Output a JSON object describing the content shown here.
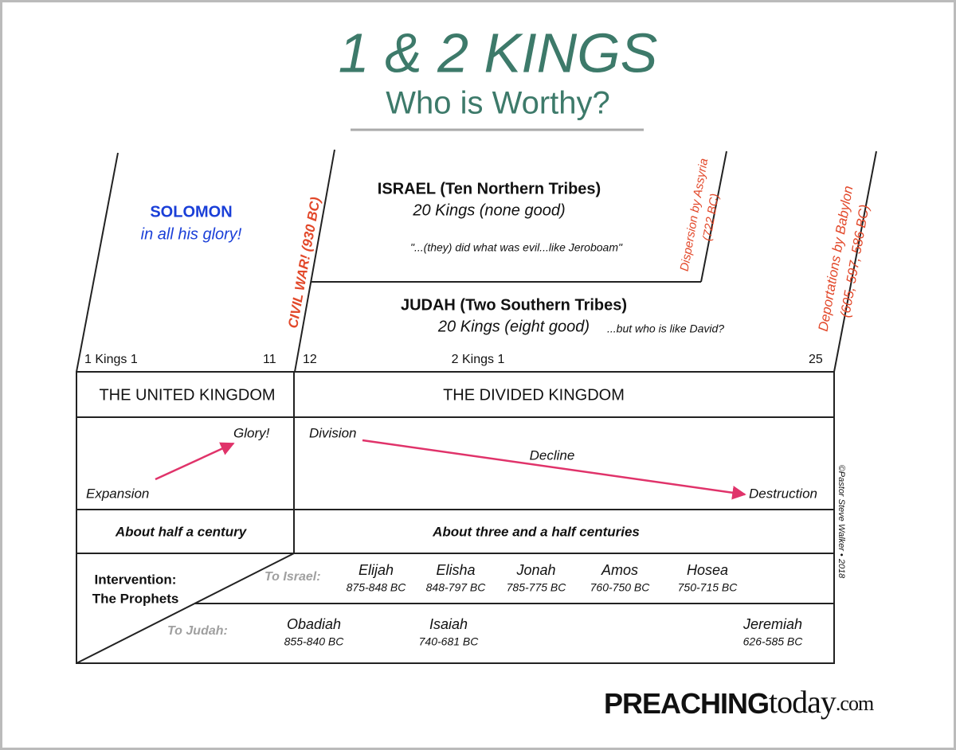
{
  "header": {
    "title": "1 & 2 KINGS",
    "subtitle": "Who is Worthy?"
  },
  "solomon": {
    "name": "SOLOMON",
    "note": "in all his glory!"
  },
  "israel": {
    "title": "ISRAEL (Ten Northern Tribes)",
    "kings": "20 Kings (none good)",
    "quote": "\"...(they) did what was evil...like Jeroboam\""
  },
  "judah": {
    "title": "JUDAH (Two Southern Tribes)",
    "kings": "20 Kings (eight good)",
    "note": "...but who is like David?"
  },
  "events": {
    "civil_war": "CIVIL WAR! (930 BC)",
    "assyria": "Dispersion by Assyria",
    "assyria_date": "(722 BC)",
    "babylon": "Deportations by Babylon",
    "babylon_dates": "(605, 597, 586 BC)"
  },
  "chapters": [
    "1 Kings 1",
    "11",
    "12",
    "2 Kings 1",
    "25"
  ],
  "kingdoms": [
    "THE UNITED KINGDOM",
    "THE DIVIDED KINGDOM"
  ],
  "trend": {
    "expansion": "Expansion",
    "glory": "Glory!",
    "division": "Division",
    "decline": "Decline",
    "destruction": "Destruction"
  },
  "durations": [
    "About half a century",
    "About three and a half centuries"
  ],
  "prophets": {
    "label": [
      "Intervention:",
      "The Prophets"
    ],
    "to_israel": "To Israel:",
    "to_judah": "To Judah:",
    "israel": [
      {
        "name": "Elijah",
        "dates": "875-848 BC"
      },
      {
        "name": "Elisha",
        "dates": "848-797 BC"
      },
      {
        "name": "Jonah",
        "dates": "785-775 BC"
      },
      {
        "name": "Amos",
        "dates": "760-750 BC"
      },
      {
        "name": "Hosea",
        "dates": "750-715 BC"
      }
    ],
    "judah": [
      {
        "name": "Obadiah",
        "dates": "855-840 BC"
      },
      {
        "name": "Isaiah",
        "dates": "740-681 BC"
      },
      {
        "name": "Jeremiah",
        "dates": "626-585 BC"
      }
    ]
  },
  "credit": "©Pastor Steve Walker • 2018",
  "logo": {
    "brand": "PREACHING",
    "brand2": "today",
    "suffix": ".com"
  }
}
